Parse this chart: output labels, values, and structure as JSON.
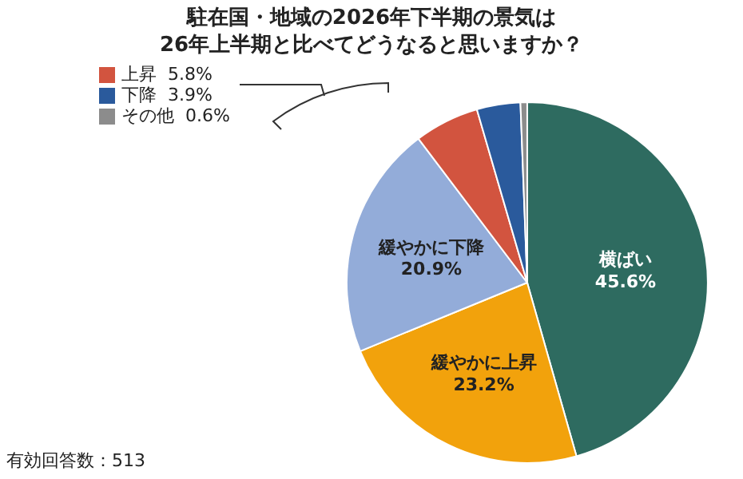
{
  "chart_data": {
    "type": "pie",
    "title": "駐在国・地域の2026年下半期の景気は\n26年上半期と比べてどうなると思いますか？",
    "categories": [
      "横ばい",
      "緩やかに上昇",
      "緩やかに下降",
      "上昇",
      "下降",
      "その他"
    ],
    "values": [
      45.6,
      23.2,
      20.9,
      5.8,
      3.9,
      0.6
    ],
    "value_labels": [
      "45.6%",
      "23.2%",
      "20.9%",
      "5.8%",
      "3.9%",
      "0.6%"
    ],
    "colors": [
      "#2e6b60",
      "#f2a20c",
      "#93acd9",
      "#d2543f",
      "#2a5a9c",
      "#8c8c8c"
    ],
    "legend": "top left",
    "annotations": [
      "有効回答数：513"
    ]
  }
}
